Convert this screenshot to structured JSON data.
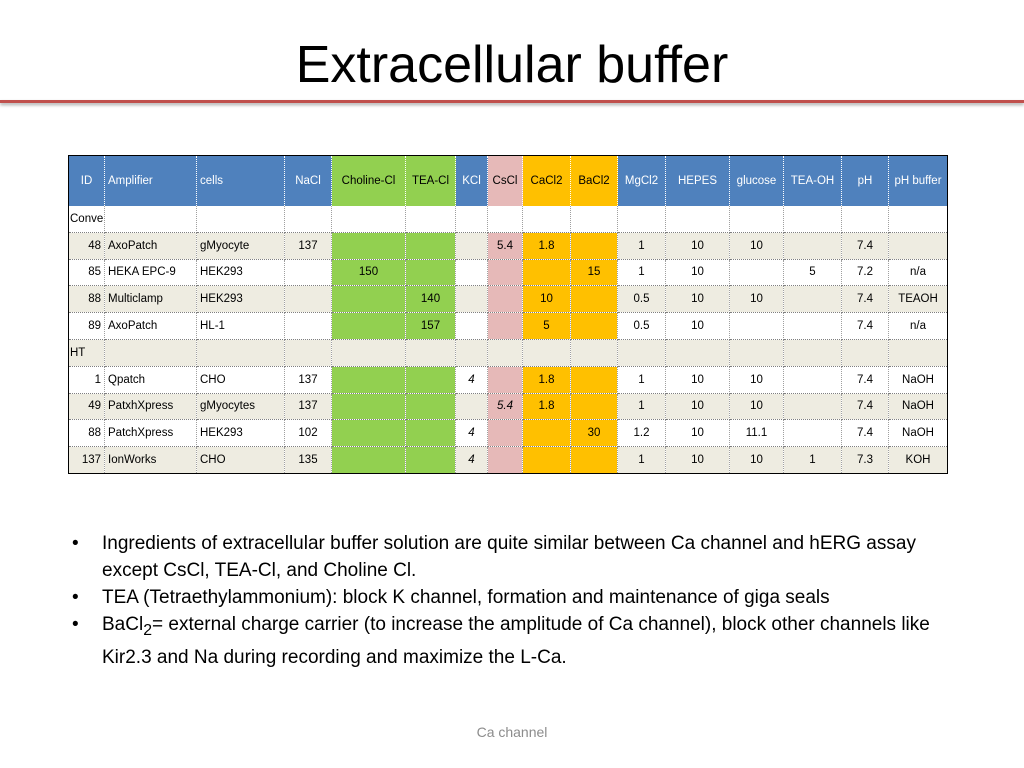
{
  "slide": {
    "title": "Extracellular buffer",
    "footer": "Ca channel"
  },
  "colors": {
    "title_rule": "#c0504d",
    "header_blue": "#4f81bd",
    "highlight_green": "#92d050",
    "highlight_pink": "#e6b9b8",
    "highlight_orange": "#ffc000",
    "band_beige": "#eeece1"
  },
  "table": {
    "headers": [
      "ID",
      "Amplifier",
      "cells",
      "NaCl",
      "Choline-Cl",
      "TEA-Cl",
      "KCl",
      "CsCl",
      "CaCl2",
      "BaCl2",
      "MgCl2",
      "HEPES",
      "glucose",
      "TEA-OH",
      "pH",
      "pH buffer"
    ],
    "groups": {
      "conventional": "Conventional",
      "ht": "HT"
    },
    "rows": [
      [
        "48",
        "AxoPatch",
        "gMyocyte",
        "137",
        "",
        "",
        "",
        "5.4",
        "1.8",
        "",
        "1",
        "10",
        "10",
        "",
        "7.4",
        ""
      ],
      [
        "85",
        "HEKA EPC-9",
        "HEK293",
        "",
        "150",
        "",
        "",
        "",
        "",
        "15",
        "1",
        "10",
        "",
        "5",
        "7.2",
        "n/a"
      ],
      [
        "88",
        "Multiclamp",
        "HEK293",
        "",
        "",
        "140",
        "",
        "",
        "10",
        "",
        "0.5",
        "10",
        "10",
        "",
        "7.4",
        "TEAOH"
      ],
      [
        "89",
        "AxoPatch",
        "HL-1",
        "",
        "",
        "157",
        "",
        "",
        "5",
        "",
        "0.5",
        "10",
        "",
        "",
        "7.4",
        "n/a"
      ],
      [
        "1",
        "Qpatch",
        "CHO",
        "137",
        "",
        "",
        "4",
        "",
        "1.8",
        "",
        "1",
        "10",
        "10",
        "",
        "7.4",
        "NaOH"
      ],
      [
        "49",
        "PatxhXpress",
        "gMyocytes",
        "137",
        "",
        "",
        "",
        "5.4",
        "1.8",
        "",
        "1",
        "10",
        "10",
        "",
        "7.4",
        "NaOH"
      ],
      [
        "88",
        "PatchXpress",
        "HEK293",
        "102",
        "",
        "",
        "4",
        "",
        "",
        "30",
        "1.2",
        "10",
        "11.1",
        "",
        "7.4",
        "NaOH"
      ],
      [
        "137",
        "IonWorks",
        "CHO",
        "135",
        "",
        "",
        "4",
        "",
        "",
        "",
        "1",
        "10",
        "10",
        "1",
        "7.3",
        "KOH"
      ]
    ]
  },
  "bullets": {
    "b1": "Ingredients of extracellular buffer solution are quite similar between Ca channel and hERG assay except CsCl, TEA-Cl, and Choline Cl.",
    "b2": "TEA (Tetraethylammonium): block K channel, formation and maintenance of giga seals",
    "b3_pre": "BaCl",
    "b3_sub": "2",
    "b3_post": "= external charge carrier (to increase the amplitude of Ca channel), block other channels like Kir2.3 and Na during recording and maximize the L-Ca."
  }
}
